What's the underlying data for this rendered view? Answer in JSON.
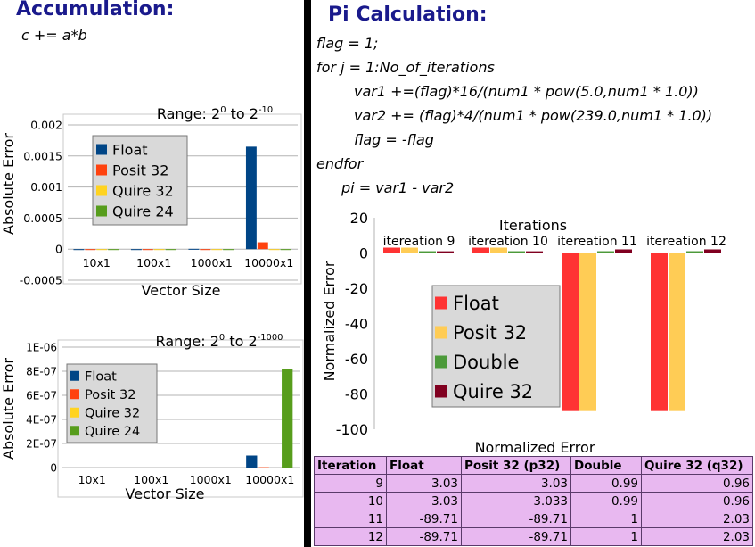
{
  "accumulation": {
    "title": "Accumulation:",
    "formula": "c += a*b"
  },
  "pi": {
    "title": "Pi Calculation:",
    "code": [
      "flag = 1;",
      "for j = 1:No_of_iterations",
      "var1 +=(flag)*16/(num1 * pow(5.0,num1 * 1.0))",
      "var2 += (flag)*4/(num1 * pow(239.0,num1 * 1.0))",
      "flag = -flag",
      "endfor",
      "pi = var1 - var2"
    ]
  },
  "chart_data": [
    {
      "type": "bar",
      "title": "Range: 2^0 to 2^-10",
      "title_parts": [
        "Range: 2",
        "0",
        " to 2",
        "-10"
      ],
      "xlabel": "Vector Size",
      "ylabel": "Absolute Error",
      "categories": [
        "10x1",
        "100x1",
        "1000x1",
        "10000x1"
      ],
      "ylim": [
        -0.0005,
        0.002
      ],
      "yticks": [
        -0.0005,
        0,
        0.0005,
        0.001,
        0.0015,
        0.002
      ],
      "ytick_labels": [
        "-0.0005",
        "0",
        "0.0005",
        "0.001",
        "0.0015",
        "0.002"
      ],
      "grid": true,
      "legend": "top-left",
      "series": [
        {
          "name": "Float",
          "color": "#004586",
          "values": [
            0,
            0,
            5e-06,
            0.00165
          ]
        },
        {
          "name": "Posit 32",
          "color": "#ff420e",
          "values": [
            0,
            0,
            0,
            0.00011
          ]
        },
        {
          "name": "Quire 32",
          "color": "#ffd320",
          "values": [
            0,
            0,
            0,
            0
          ]
        },
        {
          "name": "Quire 24",
          "color": "#579d1c",
          "values": [
            0,
            0,
            0,
            0
          ]
        }
      ]
    },
    {
      "type": "bar",
      "title": "Range: 2^0 to 2^-1000",
      "title_parts": [
        "Range: 2",
        "0",
        " to 2",
        "-1000"
      ],
      "xlabel": "Vector Size",
      "ylabel": "Absolute Error",
      "categories": [
        "10x1",
        "100x1",
        "1000x1",
        "10000x1"
      ],
      "ylim": [
        0,
        1e-06
      ],
      "yticks": [
        0,
        2e-07,
        4e-07,
        6e-07,
        8e-07,
        1e-06
      ],
      "ytick_labels": [
        "0",
        "2E-07",
        "4E-07",
        "6E-07",
        "8E-07",
        "1E-06"
      ],
      "grid": true,
      "legend": "left",
      "series": [
        {
          "name": "Float",
          "color": "#004586",
          "values": [
            0,
            0,
            0,
            1e-07
          ]
        },
        {
          "name": "Posit 32",
          "color": "#ff420e",
          "values": [
            0,
            0,
            0,
            3e-09
          ]
        },
        {
          "name": "Quire 32",
          "color": "#ffd320",
          "values": [
            0,
            0,
            0,
            0
          ]
        },
        {
          "name": "Quire 24",
          "color": "#579d1c",
          "values": [
            0,
            0,
            0,
            8.2e-07
          ]
        }
      ]
    },
    {
      "type": "bar",
      "title": "Iterations",
      "xlabel": "Normalized Error",
      "ylabel": "Normalized Error",
      "categories": [
        "itereation 9",
        "itereation 10",
        "itereation 11",
        "itereation 12"
      ],
      "ylim": [
        -100,
        20
      ],
      "yticks": [
        -100,
        -80,
        -60,
        -40,
        -20,
        0,
        20
      ],
      "ytick_labels": [
        "-100",
        "-80",
        "-60",
        "-40",
        "-20",
        "0",
        "20"
      ],
      "grid": false,
      "legend": "bottom-left",
      "series": [
        {
          "name": "Float",
          "color": "#ff3333",
          "values": [
            3.03,
            3.03,
            -89.71,
            -89.71
          ]
        },
        {
          "name": "Posit 32",
          "color": "#ffcc55",
          "values": [
            3.03,
            3.033,
            -89.71,
            -89.71
          ]
        },
        {
          "name": "Double",
          "color": "#4c9a3a",
          "values": [
            0.99,
            0.99,
            1,
            1
          ]
        },
        {
          "name": "Quire 32",
          "color": "#800020",
          "values": [
            0.96,
            0.96,
            2.03,
            2.03
          ]
        }
      ]
    }
  ],
  "table": {
    "headers": [
      "Iteration",
      "Float",
      "Posit 32 (p32)",
      "Double",
      "Quire 32 (q32)"
    ],
    "rows": [
      [
        "9",
        "3.03",
        "3.03",
        "0.99",
        "0.96"
      ],
      [
        "10",
        "3.03",
        "3.033",
        "0.99",
        "0.96"
      ],
      [
        "11",
        "-89.71",
        "-89.71",
        "1",
        "2.03"
      ],
      [
        "12",
        "-89.71",
        "-89.71",
        "1",
        "2.03"
      ]
    ]
  }
}
